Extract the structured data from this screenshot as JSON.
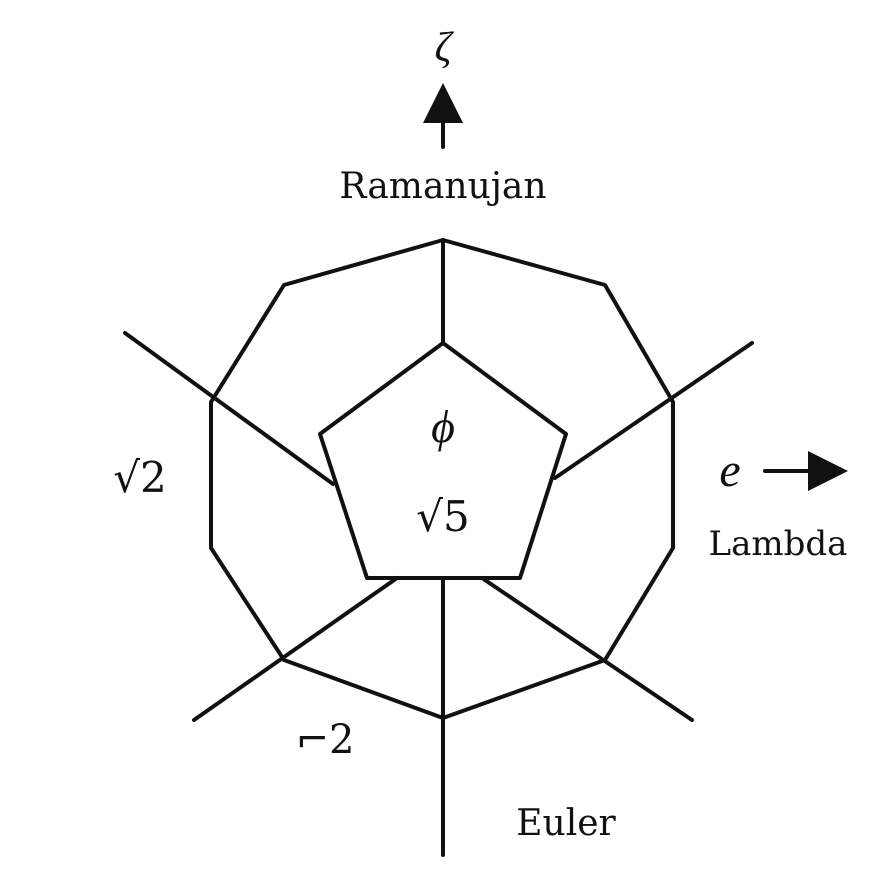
{
  "colors": {
    "background": "#ffffff",
    "ink": "#111111",
    "pentagon_fill": "#f3e2c6"
  },
  "labels": {
    "top_axis_symbol": "ζ",
    "top_name": "Ramanujan",
    "right_axis_symbol": "e",
    "right_name": "Lambda",
    "left_symbol": "√2",
    "bottom_left_symbol": "⌐2",
    "bottom_name": "Euler",
    "center_symbol_top": "ϕ",
    "center_symbol_bottom": "√5"
  },
  "icons": {
    "top_arrow": "arrow-up-icon",
    "right_arrow": "arrow-right-icon"
  }
}
